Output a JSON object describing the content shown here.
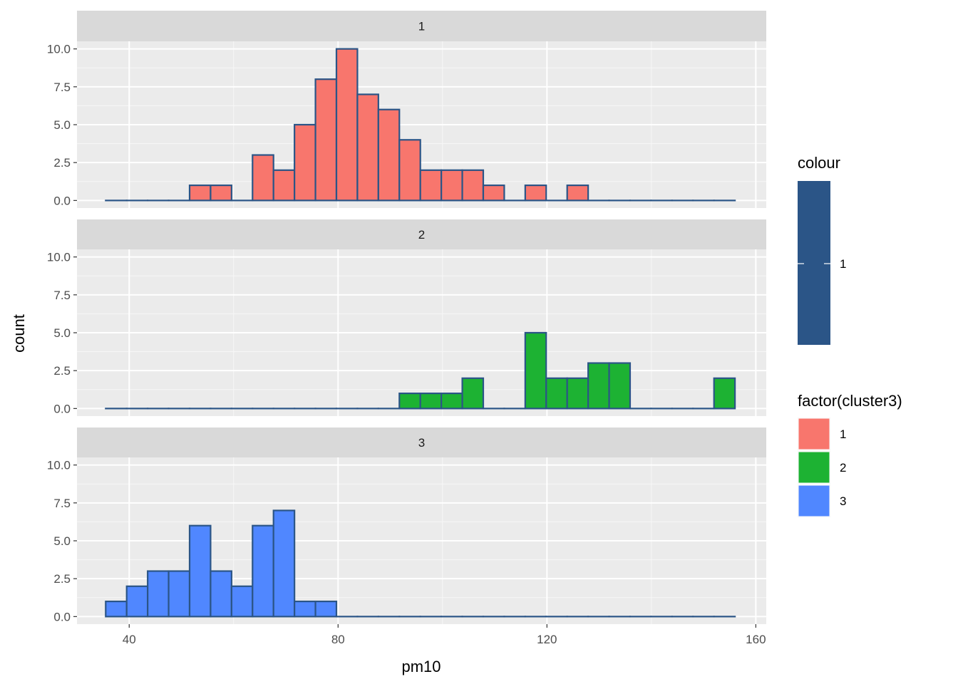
{
  "chart_data": {
    "type": "bar",
    "subtype": "faceted-histogram",
    "xlabel": "pm10",
    "ylabel": "count",
    "xlim": [
      30,
      162
    ],
    "ylim": [
      -0.5,
      10.5
    ],
    "x_ticks": [
      40,
      80,
      120,
      160
    ],
    "y_ticks": [
      0.0,
      2.5,
      5.0,
      7.5,
      10.0
    ],
    "y_tick_labels": [
      "0.0",
      "2.5",
      "5.0",
      "7.5",
      "10.0"
    ],
    "grid": true,
    "bin_start": 35.5,
    "bin_width": 4.017,
    "bar_outline_color": "#2B5587",
    "panels": [
      {
        "strip": "1",
        "fill": "#F8766D",
        "counts": [
          0,
          0,
          0,
          0,
          1,
          1,
          0,
          3,
          2,
          5,
          8,
          10,
          7,
          6,
          4,
          2,
          2,
          2,
          1,
          0,
          1,
          0,
          1,
          0,
          0,
          0,
          0,
          0,
          0,
          0
        ]
      },
      {
        "strip": "2",
        "fill": "#1DB233",
        "counts": [
          0,
          0,
          0,
          0,
          0,
          0,
          0,
          0,
          0,
          0,
          0,
          0,
          0,
          0,
          1,
          1,
          1,
          2,
          0,
          0,
          5,
          2,
          2,
          3,
          3,
          0,
          0,
          0,
          0,
          2
        ]
      },
      {
        "strip": "3",
        "fill": "#5087FF",
        "counts": [
          1,
          2,
          3,
          3,
          6,
          3,
          2,
          6,
          7,
          1,
          1,
          0,
          0,
          0,
          0,
          0,
          0,
          0,
          0,
          0,
          0,
          0,
          0,
          0,
          0,
          0,
          0,
          0,
          0,
          0
        ]
      }
    ],
    "legend": {
      "placement": "right",
      "colour": {
        "title": "colour",
        "color": "#2B5587",
        "label": "1"
      },
      "fill": {
        "title": "factor(cluster3)",
        "items": [
          {
            "label": "1",
            "color": "#F8766D"
          },
          {
            "label": "2",
            "color": "#1DB233"
          },
          {
            "label": "3",
            "color": "#5087FF"
          }
        ]
      }
    }
  }
}
